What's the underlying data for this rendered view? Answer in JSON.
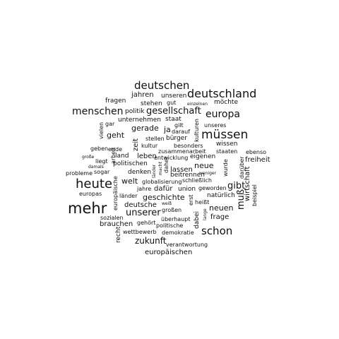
{
  "title": "",
  "words_horizontal": [
    "deutschen",
    "jahren",
    "unseren",
    "deutschland",
    "fragen",
    "stehen",
    "gut",
    "einzelnen",
    "möchte",
    "menschen",
    "politik",
    "gesellschaft",
    "europa",
    "unternehmen",
    "staat",
    "gar",
    "gilt",
    "unseres",
    "gerade",
    "ja",
    "darauf",
    "geht",
    "stellen",
    "bürger",
    "müssen",
    "kultur",
    "besonders",
    "wissen",
    "geben",
    "ende",
    "zusammenarbeit",
    "staaten",
    "ebenso",
    "große",
    "land",
    "leben",
    "entwicklung",
    "eigenen",
    "liegt",
    "politischen",
    "neue",
    "freiheit",
    "damals",
    "denken",
    "lassen",
    "probleme",
    "sogar",
    "beitrennen",
    "heute",
    "welt",
    "globalisierung",
    "schließlich",
    "jahre",
    "dafür",
    "union",
    "geworden",
    "gibt",
    "europas",
    "länder",
    "deutsche",
    "geschichte",
    "natürlich",
    "weiß",
    "heißt",
    "mehr",
    "unserer",
    "großen",
    "neuen",
    "sozialen",
    "überhaupt",
    "frage",
    "brauchen",
    "gehört",
    "politische",
    "schon",
    "wettbewerb",
    "demokratie",
    "zukunft",
    "verantwortung",
    "europäischen",
    "weniger"
  ],
  "words_vertical": [
    "vielen",
    "zeit",
    "kulturen",
    "europäische",
    "recht",
    "dabei",
    "länder",
    "macht",
    "wurde",
    "erst",
    "muß",
    "wirtschaft",
    "beispiel",
    "daher",
    "lange",
    "darüber",
    "arbeit"
  ]
}
